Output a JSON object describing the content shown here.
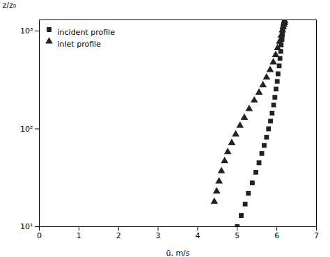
{
  "chart_data": {
    "type": "scatter",
    "xlabel": "ū, m/s",
    "ylabel": "z/z₀",
    "xlim": [
      0,
      7
    ],
    "ylim": [
      10,
      1300
    ],
    "xticks": [
      0,
      1,
      2,
      3,
      4,
      5,
      6,
      7
    ],
    "yticks": [
      {
        "value": 10,
        "label": "10¹"
      },
      {
        "value": 100,
        "label": "10²"
      },
      {
        "value": 1000,
        "label": "10³"
      }
    ],
    "log": "y",
    "grid": false,
    "legend": "upper left",
    "series": [
      {
        "name": "incident profile",
        "color": "#222222",
        "marker": "square",
        "x": [
          5.0,
          5.1,
          5.2,
          5.28,
          5.38,
          5.47,
          5.55,
          5.62,
          5.68,
          5.74,
          5.79,
          5.84,
          5.88,
          5.92,
          5.95,
          5.98,
          6.01,
          6.03,
          6.06,
          6.08,
          6.1,
          6.11,
          6.13,
          6.14,
          6.15,
          6.16,
          6.17,
          6.18,
          6.19,
          6.2
        ],
        "values": [
          10,
          13,
          17,
          22,
          28,
          36,
          45,
          56,
          68,
          82,
          100,
          120,
          145,
          175,
          210,
          255,
          305,
          365,
          440,
          525,
          620,
          720,
          820,
          930,
          1030,
          1100,
          1150,
          1200,
          1230,
          1270
        ]
      },
      {
        "name": "inlet profile",
        "color": "#222222",
        "marker": "triangle",
        "x": [
          4.42,
          4.48,
          4.54,
          4.6,
          4.68,
          4.76,
          4.86,
          4.96,
          5.07,
          5.18,
          5.3,
          5.43,
          5.55,
          5.65,
          5.74,
          5.83,
          5.91,
          5.97,
          6.02,
          6.07,
          6.11,
          6.14,
          6.16,
          6.18,
          6.19,
          6.2
        ],
        "values": [
          18,
          23,
          29,
          37,
          47,
          58,
          72,
          88,
          108,
          130,
          160,
          195,
          235,
          280,
          335,
          400,
          480,
          570,
          670,
          780,
          900,
          1020,
          1100,
          1160,
          1210,
          1260
        ]
      }
    ]
  }
}
